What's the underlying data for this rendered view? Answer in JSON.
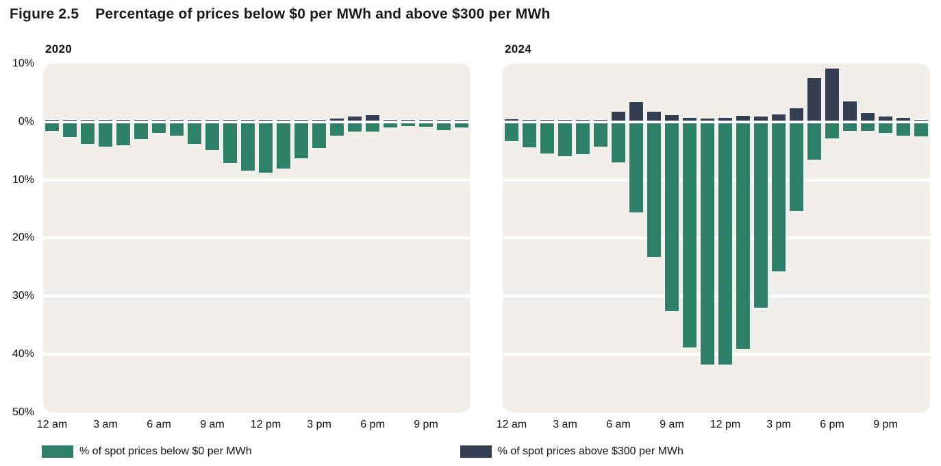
{
  "title": {
    "figure_label": "Figure 2.5",
    "text": "Percentage of prices below $0 per MWh and above $300 per MWh"
  },
  "colors": {
    "below_zero": "#2e8168",
    "above_300": "#333e50",
    "panel_background": "#f1efe9",
    "gridline": "#ffffff",
    "text": "#1b1b1b"
  },
  "legend": {
    "items": [
      {
        "label": "% of spot prices below $0 per MWh",
        "color": "#2e8168"
      },
      {
        "label": "% of spot prices above $300 per MWh",
        "color": "#333e50"
      }
    ]
  },
  "chart_data": {
    "type": "bar",
    "orientation": "diverging-vertical",
    "title": "Percentage of prices below $0 per MWh and above $300 per MWh",
    "y_axis": {
      "tick_labels": [
        "10%",
        "0%",
        "10%",
        "20%",
        "30%",
        "40%",
        "50%"
      ],
      "tick_values": [
        10,
        0,
        -10,
        -20,
        -30,
        -40,
        -50
      ],
      "range_top_pct": 10,
      "range_bottom_pct": -50,
      "grid": true,
      "note": "values below the 0% line are percentages of prices below $0, plotted downward"
    },
    "x_axis": {
      "tick_labels": [
        "12 am",
        "3 am",
        "6 am",
        "9 am",
        "12 pm",
        "3 pm",
        "6 pm",
        "9 pm"
      ],
      "tick_hours": [
        0,
        3,
        6,
        9,
        12,
        15,
        18,
        21
      ]
    },
    "hours": [
      "12 am",
      "1 am",
      "2 am",
      "3 am",
      "4 am",
      "5 am",
      "6 am",
      "7 am",
      "8 am",
      "9 am",
      "10 am",
      "11 am",
      "12 pm",
      "1 pm",
      "2 pm",
      "3 pm",
      "4 pm",
      "5 pm",
      "6 pm",
      "7 pm",
      "8 pm",
      "9 pm",
      "10 pm",
      "11 pm"
    ],
    "panels": [
      {
        "title": "2020",
        "series": [
          {
            "name": "% of spot prices below $0 per MWh",
            "direction": "down",
            "color": "#2e8168",
            "values": [
              1.5,
              2.6,
              3.8,
              4.3,
              4.0,
              2.9,
              1.9,
              2.4,
              3.8,
              4.8,
              7.1,
              8.4,
              8.7,
              8.0,
              6.3,
              4.5,
              2.4,
              1.6,
              1.6,
              1.0,
              0.7,
              0.8,
              1.4,
              0.9
            ]
          },
          {
            "name": "% of spot prices above $300 per MWh",
            "direction": "up",
            "color": "#333e50",
            "values": [
              0.1,
              0.2,
              0.1,
              0.1,
              0.1,
              0.2,
              0.3,
              0.2,
              0.3,
              0.3,
              0.3,
              0.1,
              0.1,
              0.2,
              0.2,
              0.2,
              0.6,
              0.9,
              1.2,
              0.3,
              0.3,
              0.1,
              0.2,
              0.2
            ]
          }
        ]
      },
      {
        "title": "2024",
        "series": [
          {
            "name": "% of spot prices below $0 per MWh",
            "direction": "down",
            "color": "#2e8168",
            "values": [
              3.3,
              4.4,
              5.4,
              5.9,
              5.6,
              4.3,
              7.0,
              15.6,
              23.2,
              32.5,
              38.8,
              41.7,
              41.7,
              39.0,
              32.0,
              25.7,
              15.3,
              6.5,
              2.8,
              1.5,
              1.5,
              1.9,
              2.4,
              2.5
            ]
          },
          {
            "name": "% of spot prices above $300 per MWh",
            "direction": "up",
            "color": "#333e50",
            "values": [
              0.5,
              0.2,
              0.2,
              0.2,
              0.2,
              0.4,
              1.8,
              3.4,
              1.8,
              1.2,
              0.7,
              0.6,
              0.7,
              1.1,
              1.0,
              1.3,
              2.3,
              7.6,
              9.2,
              3.5,
              1.5,
              1.0,
              0.7,
              0.3
            ]
          }
        ]
      }
    ]
  }
}
